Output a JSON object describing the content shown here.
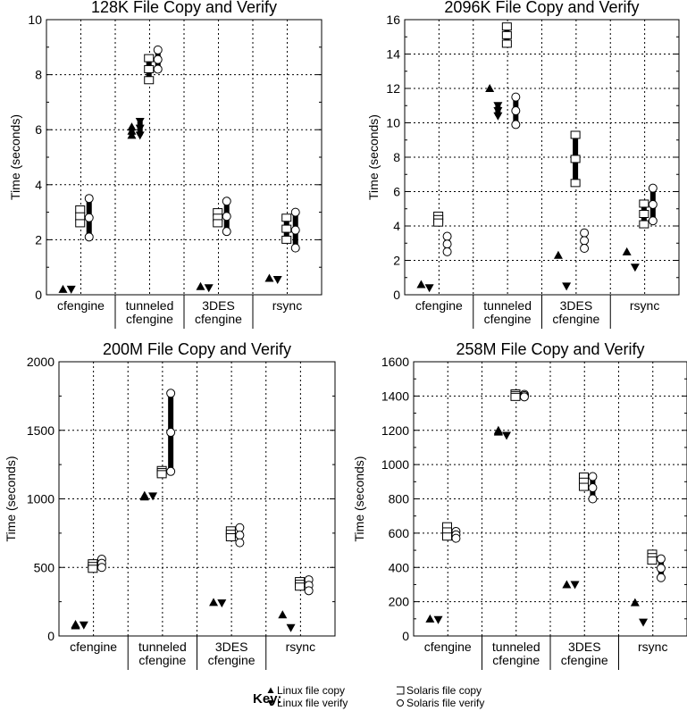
{
  "chart_data": [
    {
      "type": "scatter",
      "title": "128K File Copy and Verify",
      "ylabel": "Time (seconds)",
      "ylim": [
        0,
        10
      ],
      "ystep": 2,
      "categories": [
        [
          "cfengine"
        ],
        [
          "tunneled",
          "cfengine"
        ],
        [
          "3DES",
          "cfengine"
        ],
        [
          "rsync"
        ]
      ],
      "series_values": [
        {
          "linux_copy": [
            0.2,
            0.2
          ],
          "linux_verify": [
            0.2,
            0.2
          ],
          "solaris_copy": [
            2.6,
            3.1
          ],
          "solaris_verify": [
            2.1,
            3.5
          ]
        },
        {
          "linux_copy": [
            5.8,
            6.1
          ],
          "linux_verify": [
            5.8,
            6.3
          ],
          "solaris_copy": [
            7.8,
            8.6
          ],
          "solaris_verify": [
            8.2,
            8.9
          ]
        },
        {
          "linux_copy": [
            0.3,
            0.3
          ],
          "linux_verify": [
            0.25,
            0.25
          ],
          "solaris_copy": [
            2.6,
            3.0
          ],
          "solaris_verify": [
            2.3,
            3.4
          ]
        },
        {
          "linux_copy": [
            0.6,
            0.6
          ],
          "linux_verify": [
            0.55,
            0.55
          ],
          "solaris_copy": [
            2.0,
            2.8
          ],
          "solaris_verify": [
            1.7,
            3.0
          ]
        }
      ],
      "grid": true
    },
    {
      "type": "scatter",
      "title": "2096K File Copy and Verify",
      "ylabel": "Time (seconds)",
      "ylim": [
        0,
        16
      ],
      "ystep": 2,
      "categories": [
        [
          "cfengine"
        ],
        [
          "tunneled",
          "cfengine"
        ],
        [
          "3DES",
          "cfengine"
        ],
        [
          "rsync"
        ]
      ],
      "series_values": [
        {
          "linux_copy": [
            0.6,
            0.6
          ],
          "linux_verify": [
            0.4,
            0.4
          ],
          "solaris_copy": [
            4.2,
            4.6
          ],
          "solaris_verify": [
            2.5,
            3.4
          ]
        },
        {
          "linux_copy": [
            12.0,
            12.0
          ],
          "linux_verify": [
            10.4,
            11.0
          ],
          "solaris_copy": [
            14.6,
            15.6
          ],
          "solaris_verify": [
            9.9,
            11.5
          ]
        },
        {
          "linux_copy": [
            2.3,
            2.3
          ],
          "linux_verify": [
            0.5,
            0.5
          ],
          "solaris_copy": [
            6.5,
            9.3
          ],
          "solaris_verify": [
            2.7,
            3.6
          ]
        },
        {
          "linux_copy": [
            2.5,
            2.5
          ],
          "linux_verify": [
            1.6,
            1.6
          ],
          "solaris_copy": [
            4.1,
            5.3
          ],
          "solaris_verify": [
            4.3,
            6.2
          ]
        }
      ],
      "grid": true
    },
    {
      "type": "scatter",
      "title": "200M File Copy and Verify",
      "ylabel": "Time (seconds)",
      "ylim": [
        0,
        2000
      ],
      "ystep": 500,
      "categories": [
        [
          "cfengine"
        ],
        [
          "tunneled",
          "cfengine"
        ],
        [
          "3DES",
          "cfengine"
        ],
        [
          "rsync"
        ]
      ],
      "series_values": [
        {
          "linux_copy": [
            75,
            85
          ],
          "linux_verify": [
            80,
            80
          ],
          "solaris_copy": [
            490,
            530
          ],
          "solaris_verify": [
            500,
            560
          ]
        },
        {
          "linux_copy": [
            1015,
            1025
          ],
          "linux_verify": [
            1020,
            1020
          ],
          "solaris_copy": [
            1180,
            1210
          ],
          "solaris_verify": [
            1200,
            1770
          ]
        },
        {
          "linux_copy": [
            245,
            245
          ],
          "linux_verify": [
            240,
            240
          ],
          "solaris_copy": [
            720,
            770
          ],
          "solaris_verify": [
            680,
            790
          ]
        },
        {
          "linux_copy": [
            155,
            155
          ],
          "linux_verify": [
            60,
            60
          ],
          "solaris_copy": [
            360,
            400
          ],
          "solaris_verify": [
            330,
            410
          ]
        }
      ],
      "grid": true
    },
    {
      "type": "scatter",
      "title": "258M File Copy and Verify",
      "ylabel": "Time (seconds)",
      "ylim": [
        0,
        1600
      ],
      "ystep": 200,
      "categories": [
        [
          "cfengine"
        ],
        [
          "tunneled",
          "cfengine"
        ],
        [
          "3DES",
          "cfengine"
        ],
        [
          "rsync"
        ]
      ],
      "series_values": [
        {
          "linux_copy": [
            100,
            100
          ],
          "linux_verify": [
            95,
            95
          ],
          "solaris_copy": [
            580,
            640
          ],
          "solaris_verify": [
            570,
            610
          ]
        },
        {
          "linux_copy": [
            1190,
            1200
          ],
          "linux_verify": [
            1170,
            1170
          ],
          "solaris_copy": [
            1395,
            1415
          ],
          "solaris_verify": [
            1395,
            1410
          ]
        },
        {
          "linux_copy": [
            300,
            300
          ],
          "linux_verify": [
            300,
            300
          ],
          "solaris_copy": [
            870,
            930
          ],
          "solaris_verify": [
            800,
            930
          ]
        },
        {
          "linux_copy": [
            195,
            195
          ],
          "linux_verify": [
            80,
            80
          ],
          "solaris_copy": [
            440,
            480
          ],
          "solaris_verify": [
            340,
            450
          ]
        }
      ],
      "grid": true
    }
  ],
  "legend": {
    "title": "Key:",
    "placement": "bottom-center",
    "items": [
      {
        "key": "linux_copy",
        "label": "Linux file copy",
        "marker": "filled-triangle-up"
      },
      {
        "key": "linux_verify",
        "label": "Linux file verify",
        "marker": "filled-triangle-down"
      },
      {
        "key": "solaris_copy",
        "label": "Solaris file copy",
        "marker": "open-square"
      },
      {
        "key": "solaris_verify",
        "label": "Solaris file verify",
        "marker": "open-circle"
      }
    ]
  }
}
